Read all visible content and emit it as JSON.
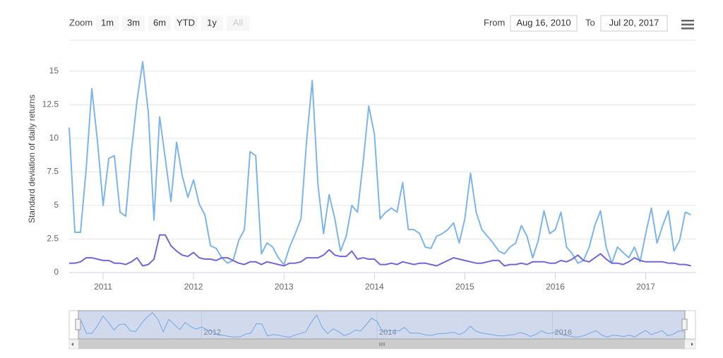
{
  "chart_data": {
    "type": "line",
    "y_label": "Standard deviation of daily returns",
    "range_selector": {
      "label": "Zoom",
      "buttons": [
        "1m",
        "3m",
        "6m",
        "YTD",
        "1y",
        "All"
      ],
      "from_label": "From",
      "from": "Aug 16, 2010",
      "to_label": "To",
      "to": "Jul 20, 2017"
    },
    "x": [
      2010.625,
      2010.6875,
      2010.75,
      2010.8125,
      2010.875,
      2010.9375,
      2011,
      2011.0625,
      2011.125,
      2011.1875,
      2011.25,
      2011.3125,
      2011.375,
      2011.4375,
      2011.5,
      2011.5625,
      2011.625,
      2011.6875,
      2011.75,
      2011.8125,
      2011.875,
      2011.9375,
      2012,
      2012.0625,
      2012.125,
      2012.1875,
      2012.25,
      2012.3125,
      2012.375,
      2012.4375,
      2012.5,
      2012.5625,
      2012.625,
      2012.6875,
      2012.75,
      2012.8125,
      2012.875,
      2012.9375,
      2013,
      2013.0625,
      2013.125,
      2013.1875,
      2013.25,
      2013.3125,
      2013.375,
      2013.4375,
      2013.5,
      2013.5625,
      2013.625,
      2013.6875,
      2013.75,
      2013.8125,
      2013.875,
      2013.9375,
      2014,
      2014.0625,
      2014.125,
      2014.1875,
      2014.25,
      2014.3125,
      2014.375,
      2014.4375,
      2014.5,
      2014.5625,
      2014.625,
      2014.6875,
      2014.75,
      2014.8125,
      2014.875,
      2014.9375,
      2015,
      2015.0625,
      2015.125,
      2015.1875,
      2015.25,
      2015.3125,
      2015.375,
      2015.4375,
      2015.5,
      2015.5625,
      2015.625,
      2015.6875,
      2015.75,
      2015.8125,
      2015.875,
      2015.9375,
      2016,
      2016.0625,
      2016.125,
      2016.1875,
      2016.25,
      2016.3125,
      2016.375,
      2016.4375,
      2016.5,
      2016.5625,
      2016.625,
      2016.6875,
      2016.75,
      2016.8125,
      2016.875,
      2016.9375,
      2017,
      2017.0625,
      2017.125,
      2017.1875,
      2017.25,
      2017.3125,
      2017.375,
      2017.4375,
      2017.5
    ],
    "series": [
      {
        "color": "#7cb5ec",
        "values": [
          10.8,
          3,
          3,
          7.7,
          13.7,
          9.8,
          5,
          8.5,
          8.7,
          4.5,
          4.2,
          9,
          12.8,
          15.7,
          11.9,
          3.9,
          11.6,
          8.5,
          5.3,
          9.7,
          7.2,
          5.6,
          6.9,
          5.1,
          4.3,
          2,
          1.8,
          1.1,
          0.7,
          0.9,
          2.4,
          3.2,
          9,
          8.7,
          1.4,
          2.2,
          1.9,
          1.1,
          0.6,
          1.9,
          2.9,
          4,
          9.8,
          14.3,
          6.6,
          2.9,
          5.8,
          4,
          1.6,
          2.7,
          5,
          4.5,
          8.2,
          12.4,
          10.3,
          4,
          4.5,
          4.8,
          4.5,
          6.7,
          3.2,
          3.2,
          2.9,
          1.9,
          1.8,
          2.7,
          2.9,
          3.2,
          3.7,
          2.2,
          4,
          7.4,
          4.5,
          3.2,
          2.7,
          2.2,
          1.6,
          1.4,
          1.9,
          2.2,
          3.5,
          2.7,
          1.1,
          2.4,
          4.6,
          2.9,
          3.2,
          4.5,
          1.9,
          1.4,
          0.7,
          0.9,
          1.9,
          3.5,
          4.6,
          1.9,
          0.7,
          1.9,
          1.5,
          1.1,
          1.9,
          0.8,
          2.9,
          4.8,
          2.2,
          3.5,
          4.6,
          1.6,
          2.4,
          4.5,
          4.3
        ]
      },
      {
        "color": "#7366d6",
        "values": [
          0.7,
          0.7,
          0.8,
          1.1,
          1.1,
          1,
          0.9,
          0.9,
          0.7,
          0.7,
          0.6,
          0.8,
          1.1,
          0.5,
          0.6,
          1,
          2.8,
          2.8,
          2,
          1.6,
          1.3,
          1.2,
          1.5,
          1.1,
          1,
          1,
          0.9,
          1.1,
          1.1,
          0.9,
          0.7,
          0.6,
          0.8,
          0.8,
          0.6,
          0.8,
          0.7,
          0.6,
          0.5,
          0.7,
          0.7,
          0.8,
          1.1,
          1.1,
          1.1,
          1.3,
          1.7,
          1.3,
          1.2,
          1.2,
          1.6,
          1,
          1.1,
          1,
          1,
          0.6,
          0.6,
          0.7,
          0.6,
          0.8,
          0.7,
          0.6,
          0.7,
          0.7,
          0.6,
          0.5,
          0.7,
          0.9,
          1.1,
          1,
          0.9,
          0.8,
          0.7,
          0.7,
          0.8,
          0.9,
          0.9,
          0.5,
          0.6,
          0.6,
          0.7,
          0.6,
          0.8,
          0.8,
          0.8,
          0.7,
          0.7,
          0.9,
          0.8,
          1,
          1.3,
          0.9,
          0.8,
          1.1,
          1.4,
          1,
          0.7,
          0.7,
          0.6,
          0.8,
          1.1,
          0.9,
          0.8,
          0.8,
          0.8,
          0.8,
          0.7,
          0.7,
          0.6,
          0.6,
          0.5
        ]
      }
    ],
    "xlim": [
      2010.625,
      2017.55
    ],
    "xticks": [
      2011,
      2012,
      2013,
      2014,
      2015,
      2016,
      2017
    ],
    "ylim": [
      0,
      17.3
    ],
    "yticks": [
      0,
      2.5,
      5,
      7.5,
      10,
      12.5,
      15
    ],
    "grid": true,
    "navigator": {
      "xlim": [
        2010.49,
        2017.63
      ],
      "ylim": [
        0,
        16.5
      ],
      "xticks": [
        2012,
        2014,
        2016
      ]
    }
  }
}
